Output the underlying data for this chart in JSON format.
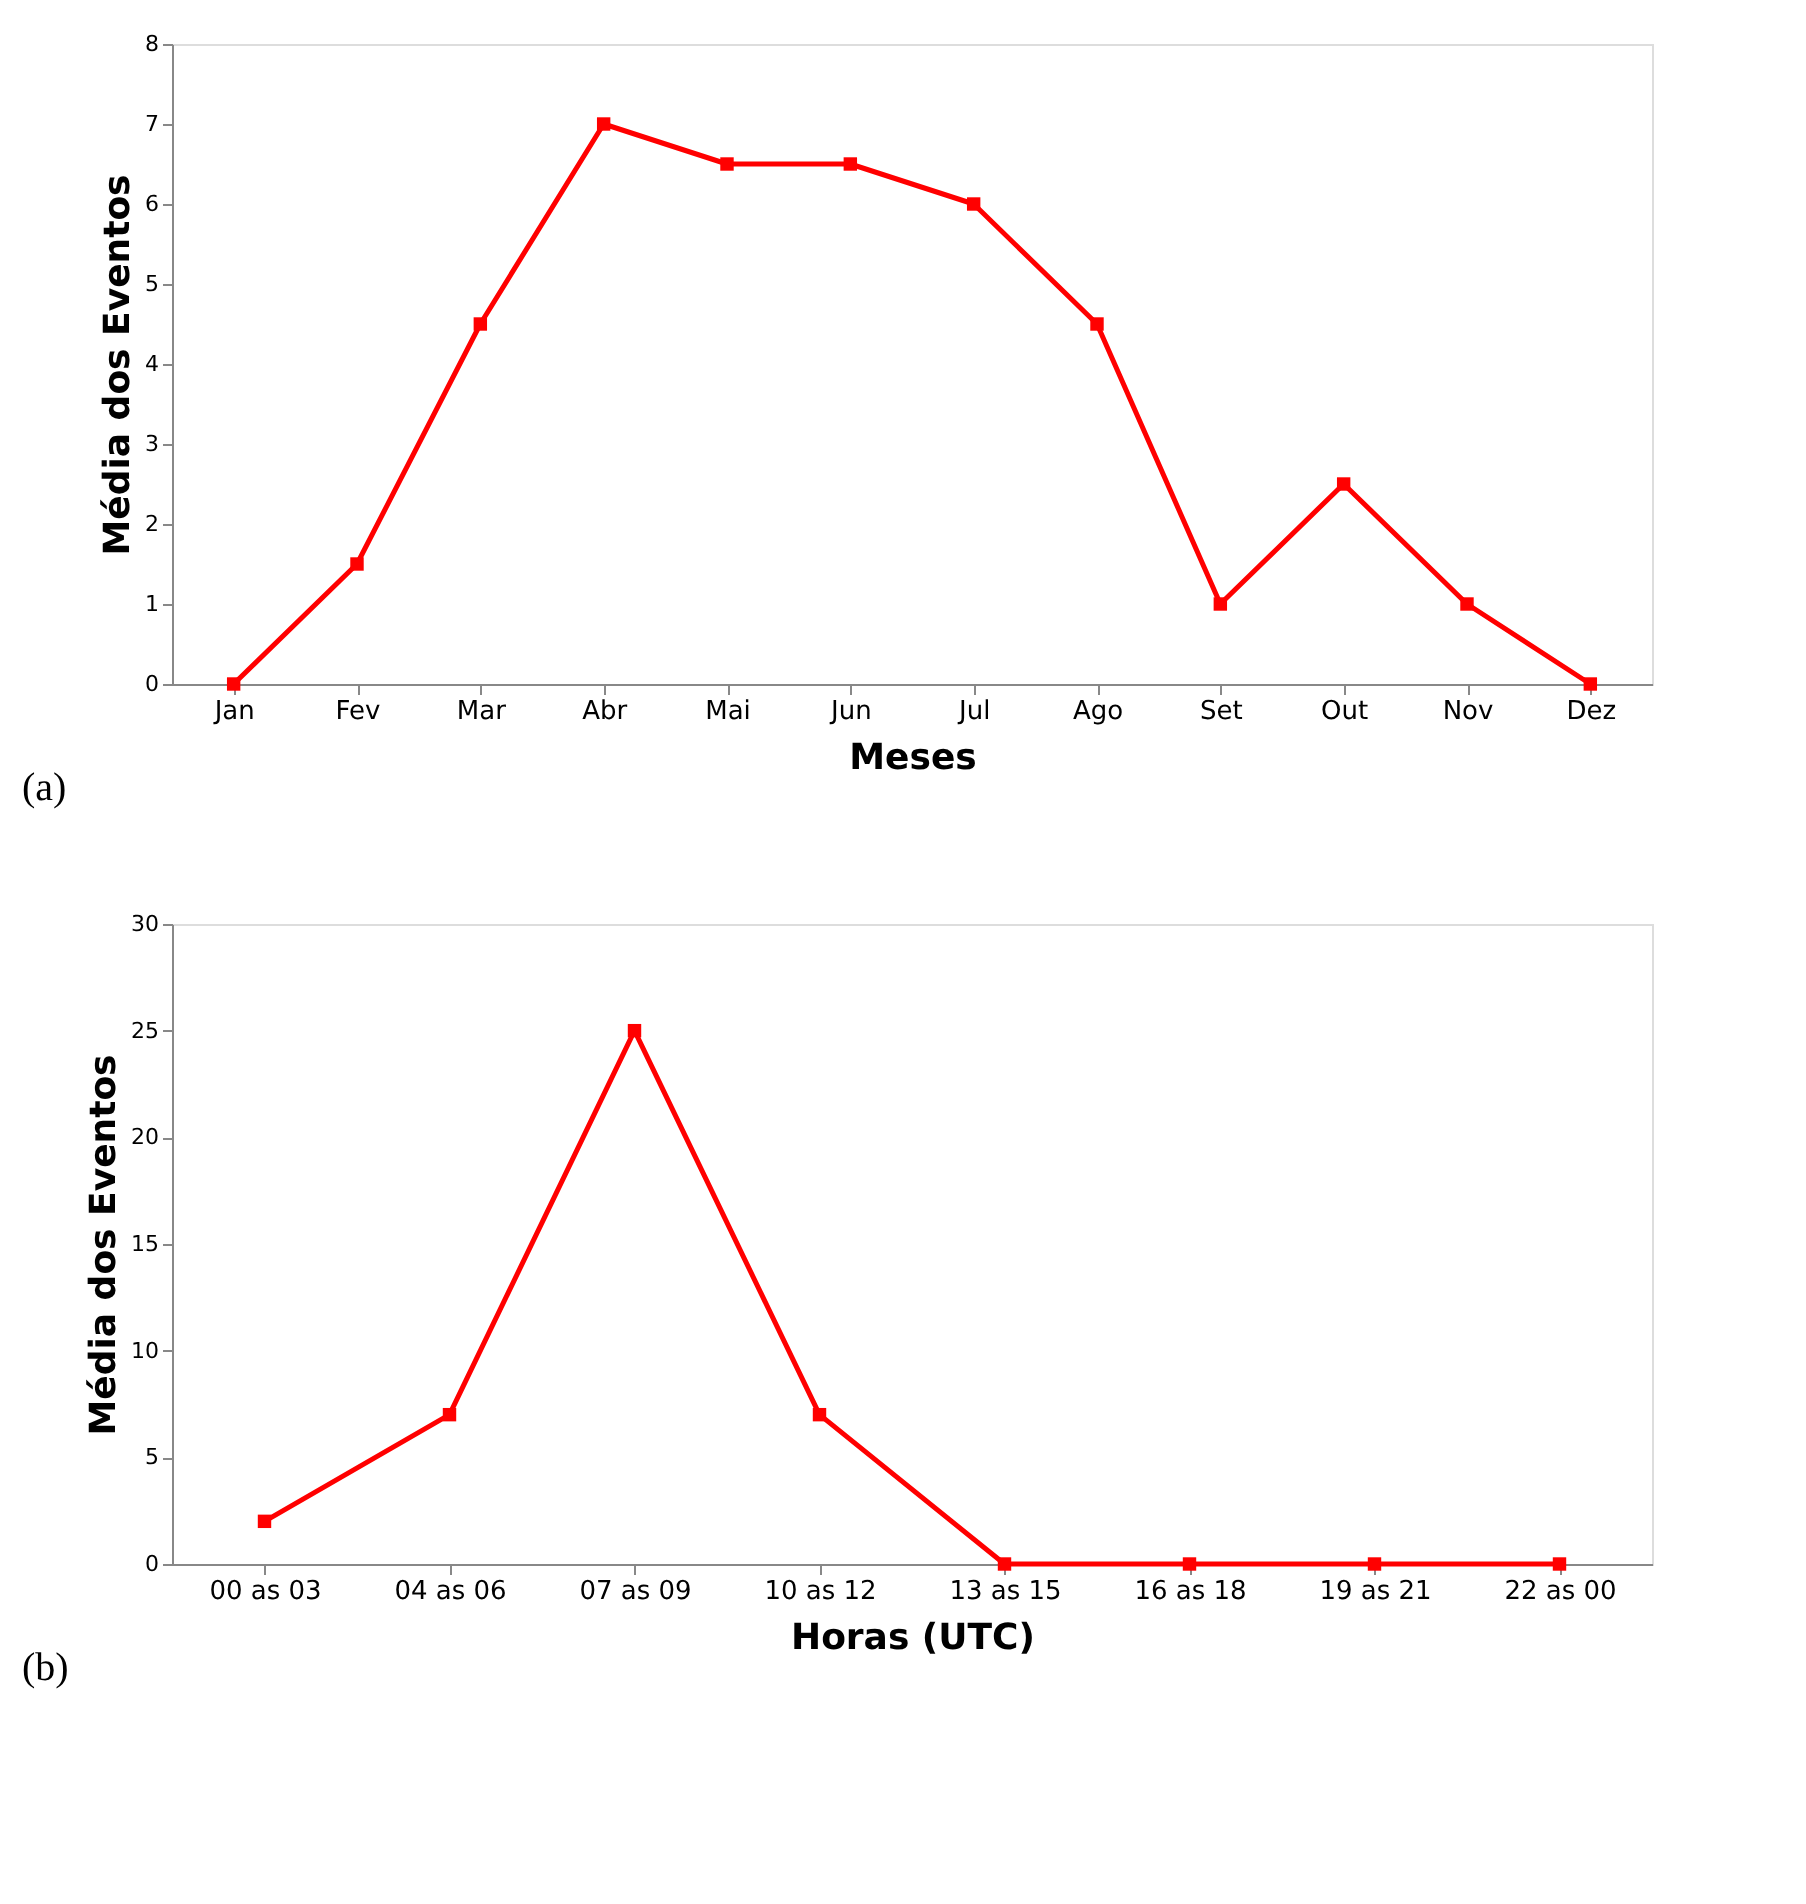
{
  "chart_data": [
    {
      "type": "line",
      "xlabel": "Meses",
      "ylabel": "Média dos Eventos",
      "categories": [
        "Jan",
        "Fev",
        "Mar",
        "Abr",
        "Mai",
        "Jun",
        "Jul",
        "Ago",
        "Set",
        "Out",
        "Nov",
        "Dez"
      ],
      "series": [
        {
          "color": "#ff0000",
          "values": [
            0,
            1.5,
            4.5,
            7,
            6.5,
            6.5,
            6,
            4.5,
            1,
            2.5,
            1,
            0
          ]
        }
      ],
      "ylim": [
        0,
        8
      ],
      "yticks": [
        0,
        1,
        2,
        3,
        4,
        5,
        6,
        7,
        8
      ],
      "grid": false,
      "marker": "square",
      "line_style": "solid",
      "annotations": [
        "(a)"
      ]
    },
    {
      "type": "line",
      "xlabel": "Horas (UTC)",
      "ylabel": "Média dos Eventos",
      "categories": [
        "00 as 03",
        "04 as 06",
        "07 as 09",
        "10 as 12",
        "13 as 15",
        "16 as 18",
        "19 as 21",
        "22 as 00"
      ],
      "series": [
        {
          "color": "#ff0000",
          "values": [
            2,
            7,
            25,
            7,
            0,
            0,
            0,
            0
          ]
        }
      ],
      "ylim": [
        0,
        30
      ],
      "yticks": [
        0,
        5,
        10,
        15,
        20,
        25,
        30
      ],
      "grid": false,
      "marker": "square",
      "line_style": "solid",
      "annotations": [
        "(b)"
      ]
    }
  ]
}
